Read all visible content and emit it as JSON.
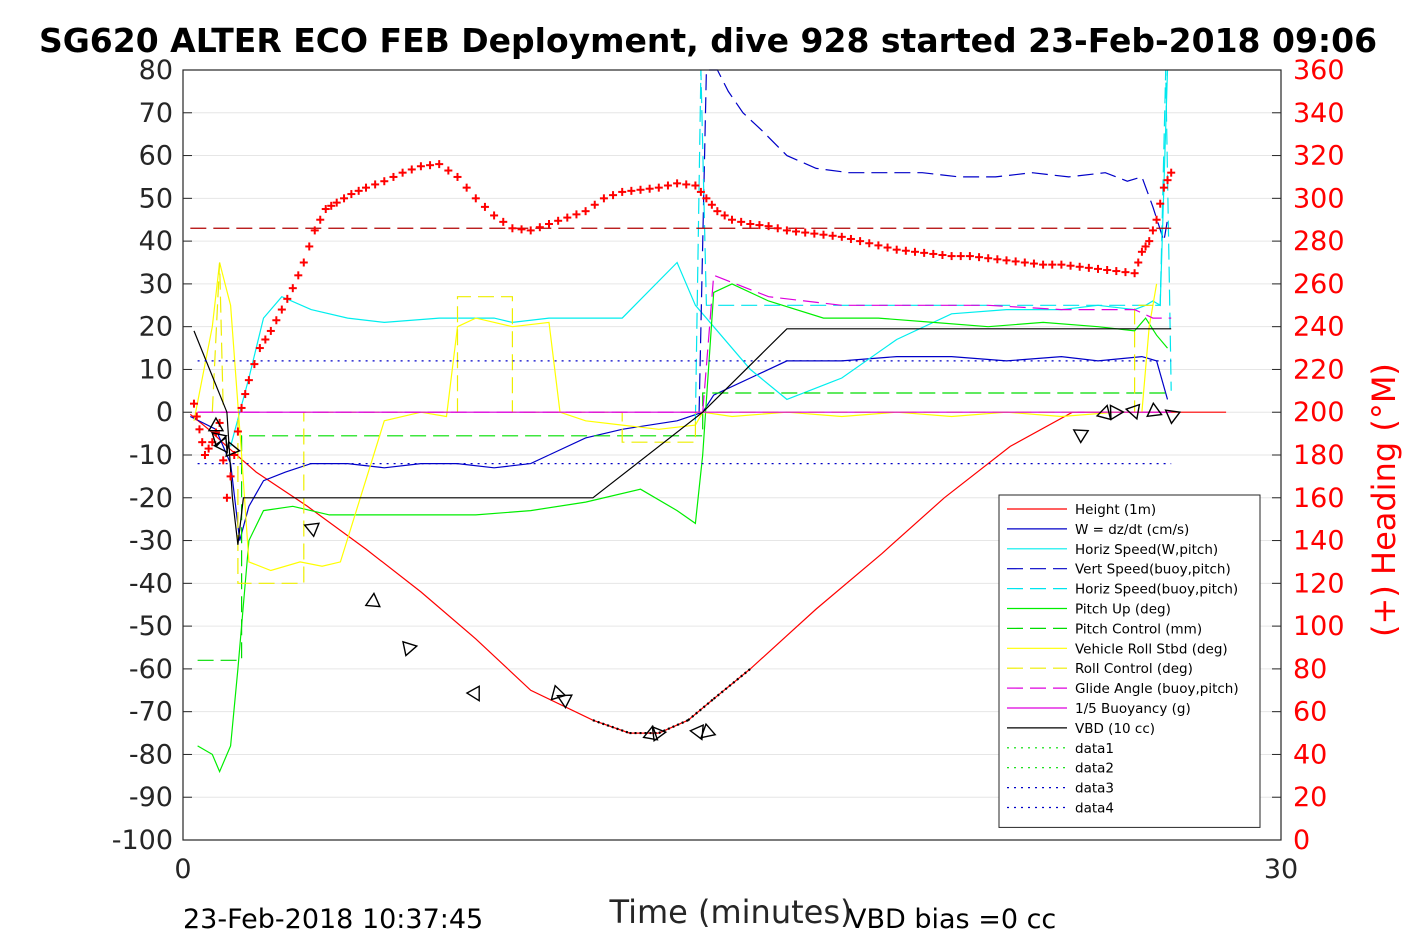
{
  "title": "SG620 ALTER ECO FEB Deployment, dive 928 started 23-Feb-2018 09:06",
  "footer": {
    "left": "23-Feb-2018 10:37:45",
    "right": "VBD bias =0 cc"
  },
  "chart_data": {
    "type": "line",
    "xlabel": "Time (minutes)",
    "ylabel": "",
    "y2label": "(+) Heading (°M)",
    "xlim": [
      0,
      30
    ],
    "ylim": [
      -100,
      80
    ],
    "y2lim": [
      0,
      360
    ],
    "x_ticks": [
      0,
      30
    ],
    "y_ticks": [
      80,
      70,
      60,
      50,
      40,
      30,
      20,
      10,
      0,
      -10,
      -20,
      -30,
      -40,
      -50,
      -60,
      -70,
      -80,
      -90,
      -100
    ],
    "y2_ticks": [
      360,
      340,
      320,
      300,
      280,
      260,
      240,
      220,
      200,
      180,
      160,
      140,
      120,
      100,
      80,
      60,
      40,
      20,
      0
    ],
    "grid": "horizontal",
    "legend_position": "lower-right",
    "colors": {
      "height": "#ff0000",
      "w": "#0000c8",
      "horiz_w": "#00eeee",
      "vert_buoy": "#0000c8",
      "horiz_buoy": "#00e5ee",
      "pitch_up": "#00ee00",
      "pitch_ctrl": "#00dd00",
      "roll": "#ffff00",
      "roll_ctrl": "#eeee00",
      "glide": "#dd00dd",
      "buoy": "#dd00dd",
      "vbd": "#000000",
      "heading": "#ff0000"
    },
    "series": [
      {
        "name": "Height (1m)",
        "style": "solid",
        "color": "#ff0000",
        "x": [
          0.2,
          0.7,
          1.2,
          2.0,
          3.4,
          5.0,
          6.5,
          8.0,
          9.5,
          11.2,
          12.2,
          13.0,
          13.8,
          14.5,
          15.5,
          17.3,
          19.1,
          20.8,
          22.6,
          24.3,
          26.0,
          27.8,
          28.5
        ],
        "y": [
          -0.5,
          -4,
          -8,
          -14,
          -22,
          -32,
          -42,
          -53,
          -65,
          -72,
          -75,
          -75,
          -72,
          -67,
          -60,
          -46,
          -33,
          -20,
          -8,
          0,
          0,
          0,
          0
        ]
      },
      {
        "name": "W = dz/dt (cm/s)",
        "style": "solid",
        "color": "#0000c8",
        "x": [
          0.2,
          0.9,
          1.3,
          1.55,
          1.8,
          2.2,
          2.8,
          3.5,
          4.5,
          5.5,
          6.5,
          7.5,
          8.5,
          9.5,
          10.0,
          11.0,
          12.0,
          13.5,
          14.2,
          14.5,
          15.5,
          16.5,
          18.0,
          19.5,
          21.0,
          22.5,
          24.0,
          25.0,
          26.2,
          26.6,
          26.9
        ],
        "y": [
          -1,
          -4,
          -12,
          -30,
          -22,
          -16,
          -14,
          -12,
          -12,
          -13,
          -12,
          -12,
          -13,
          -12,
          -10,
          -6,
          -4,
          -2,
          0,
          4,
          8,
          12,
          12,
          13,
          13,
          12,
          13,
          12,
          13,
          12,
          3
        ]
      },
      {
        "name": "Horiz Speed(W,pitch)",
        "style": "solid",
        "color": "#00eeee",
        "x": [
          1.3,
          1.8,
          2.2,
          2.7,
          3.5,
          4.5,
          5.5,
          7.0,
          8.5,
          9.0,
          10.0,
          11.0,
          12.0,
          13.5,
          14.0,
          14.5,
          15.5,
          16.5,
          18.0,
          19.5,
          21.0,
          22.5,
          24.0,
          25.0,
          26.0,
          26.3,
          26.5,
          26.7,
          26.9
        ],
        "y": [
          -8,
          8,
          22,
          27,
          24,
          22,
          21,
          22,
          22,
          21,
          22,
          22,
          22,
          35,
          25,
          20,
          10,
          3,
          8,
          17,
          23,
          24,
          24,
          25,
          24,
          25,
          26,
          25,
          90
        ]
      },
      {
        "name": "Vert Speed(buoy,pitch)",
        "style": "dash",
        "color": "#0000c8",
        "x": [
          14.1,
          14.3,
          14.6,
          14.9,
          15.3,
          15.8,
          16.5,
          17.3,
          18.2,
          19.2,
          20.2,
          21.2,
          22.2,
          23.2,
          24.2,
          25.2,
          25.8,
          26.2,
          26.5,
          26.8,
          26.9
        ],
        "y": [
          0,
          80,
          80,
          75,
          70,
          66,
          60,
          57,
          56,
          56,
          56,
          55,
          55,
          56,
          55,
          56,
          54,
          55,
          48,
          40,
          45
        ]
      },
      {
        "name": "Horiz Speed(buoy,pitch)",
        "style": "dash",
        "color": "#00e5ee",
        "x": [
          14.0,
          14.15,
          14.3,
          26.7,
          26.85,
          27.0
        ],
        "y": [
          -2,
          80,
          25,
          25,
          80,
          5
        ]
      },
      {
        "name": "Pitch Up (deg)",
        "style": "solid",
        "color": "#00ee00",
        "x": [
          0.4,
          0.8,
          1.0,
          1.3,
          1.5,
          1.8,
          2.2,
          3.0,
          4.0,
          5.0,
          6.5,
          8.0,
          9.5,
          11.0,
          12.5,
          13.5,
          14.0,
          14.2,
          14.5,
          15.0,
          16.0,
          17.5,
          19.0,
          20.5,
          22.0,
          23.5,
          25.0,
          26.0,
          26.3,
          26.6,
          26.9
        ],
        "y": [
          -78,
          -80,
          -84,
          -78,
          -60,
          -30,
          -23,
          -22,
          -24,
          -24,
          -24,
          -24,
          -23,
          -21,
          -18,
          -23,
          -26,
          -10,
          28,
          30,
          26,
          22,
          22,
          21,
          20,
          21,
          20,
          19,
          22,
          18,
          15
        ]
      },
      {
        "name": "Pitch Control (mm)",
        "style": "dash",
        "color": "#00dd00",
        "x": [
          0.4,
          1.4,
          1.6,
          1.6,
          13.5,
          14.2,
          14.2,
          27.0
        ],
        "y": [
          -58,
          -58,
          -58,
          -5.5,
          -5.5,
          -5.5,
          4.5,
          4.5
        ]
      },
      {
        "name": "Vehicle Roll Stbd (deg)",
        "style": "solid",
        "color": "#ffff00",
        "x": [
          0.3,
          0.8,
          1.0,
          1.3,
          1.6,
          1.8,
          2.4,
          3.2,
          3.8,
          4.3,
          5.5,
          6.5,
          7.2,
          7.5,
          8.0,
          9.0,
          10.0,
          10.3,
          11.0,
          12.0,
          13.0,
          14.0,
          14.2,
          15.0,
          16.5,
          18.0,
          19.5,
          21.0,
          22.5,
          24.0,
          25.5,
          26.2,
          26.4,
          26.6
        ],
        "y": [
          -2,
          20,
          35,
          25,
          -10,
          -35,
          -37,
          -35,
          -36,
          -35,
          -2,
          0,
          -1,
          20,
          22,
          20,
          21,
          0,
          -2,
          -3,
          -4,
          -3,
          0,
          -1,
          0,
          -1,
          0,
          -1,
          0,
          -1,
          0,
          0,
          20,
          30
        ]
      },
      {
        "name": "Roll Control (deg)",
        "style": "dash",
        "color": "#eeee00",
        "x": [
          0.8,
          1.0,
          1.1,
          1.5,
          1.5,
          3.3,
          3.3,
          7.5,
          7.5,
          9.0,
          9.0,
          12.0,
          12.0,
          14.0,
          14.0,
          26.0,
          26.0,
          26.5
        ],
        "y": [
          0,
          35,
          0,
          0,
          -40,
          -40,
          0,
          0,
          27,
          27,
          0,
          0,
          -7,
          -7,
          0,
          0,
          25,
          25
        ]
      },
      {
        "name": "Glide Angle (buoy,pitch)",
        "style": "dash",
        "color": "#dd00dd",
        "x": [
          0.4,
          13.5,
          14.2,
          14.5,
          16.0,
          18.0,
          20.0,
          22.0,
          24.0,
          26.0,
          26.5,
          27.0
        ],
        "y": [
          0,
          0,
          0,
          32,
          27,
          25,
          25,
          25,
          24,
          24,
          22,
          22
        ]
      },
      {
        "name": "1/5 Buoyancy (g)",
        "style": "solid",
        "color": "#dd00dd",
        "x": [
          0.4,
          27.0
        ],
        "y": [
          0,
          0
        ]
      },
      {
        "name": "VBD (10 cc)",
        "style": "solid",
        "color": "#000000",
        "x": [
          0.3,
          1.2,
          1.35,
          1.5,
          1.65,
          3.0,
          11.2,
          14.2,
          16.5,
          27.0
        ],
        "y": [
          19,
          0,
          -20,
          -31,
          -20,
          -20,
          -20,
          0,
          19.5,
          19.5
        ]
      },
      {
        "name": "data1",
        "style": "dot",
        "color": "#00dd00",
        "x": [],
        "y": []
      },
      {
        "name": "data2",
        "style": "dot",
        "color": "#00dd00",
        "x": [],
        "y": []
      },
      {
        "name": "data3",
        "style": "dot",
        "color": "#0000c8",
        "x": [
          0.4,
          27.0
        ],
        "y": [
          12,
          12
        ]
      },
      {
        "name": "data4",
        "style": "dot",
        "color": "#0000c8",
        "x": [
          0.4,
          27.0
        ],
        "y": [
          -12,
          -12
        ]
      }
    ],
    "heading_reference": {
      "y2": 286
    },
    "heading": {
      "x": [
        0.3,
        0.45,
        0.6,
        0.8,
        1.0,
        1.2,
        1.4,
        1.6,
        1.8,
        2.1,
        2.4,
        2.7,
        3.0,
        3.3,
        3.6,
        3.9,
        4.2,
        4.6,
        5.0,
        5.5,
        6.0,
        6.5,
        7.0,
        7.5,
        8.0,
        8.5,
        9.0,
        9.5,
        10.0,
        10.5,
        11.0,
        11.5,
        12.0,
        12.5,
        13.0,
        13.5,
        14.0,
        14.3,
        14.6,
        15.0,
        15.5,
        16.0,
        16.5,
        17.0,
        17.5,
        18.0,
        18.5,
        19.0,
        19.5,
        20.0,
        20.5,
        21.0,
        21.5,
        22.0,
        22.5,
        23.0,
        23.5,
        24.0,
        24.5,
        25.0,
        25.5,
        26.0,
        26.2,
        26.4,
        26.6,
        26.8,
        27.0
      ],
      "y2": [
        204,
        192,
        180,
        186,
        195,
        160,
        180,
        202,
        215,
        230,
        238,
        248,
        258,
        270,
        285,
        295,
        298,
        302,
        305,
        308,
        312,
        315,
        316,
        310,
        300,
        292,
        286,
        285,
        288,
        291,
        294,
        300,
        303,
        304,
        305,
        307,
        306,
        300,
        294,
        290,
        288,
        287,
        285,
        284,
        283,
        282,
        280,
        278,
        276,
        275,
        274,
        273,
        273,
        272,
        271,
        270,
        269,
        269,
        268,
        267,
        266,
        265,
        275,
        280,
        290,
        305,
        312
      ]
    },
    "markers": {
      "x": [
        0.9,
        1.0,
        1.1,
        1.3,
        3.5,
        5.2,
        6.2,
        8.0,
        10.2,
        10.4,
        12.8,
        13.0,
        14.1,
        14.3,
        24.5,
        25.2,
        25.5,
        26.0,
        26.5,
        27.0
      ],
      "y": [
        -3,
        -6,
        -8,
        -9,
        -27,
        -44,
        -55,
        -66,
        -66,
        -67,
        -75,
        -75,
        -75,
        -75,
        -5,
        0,
        0,
        0,
        0,
        -0.5
      ]
    }
  }
}
